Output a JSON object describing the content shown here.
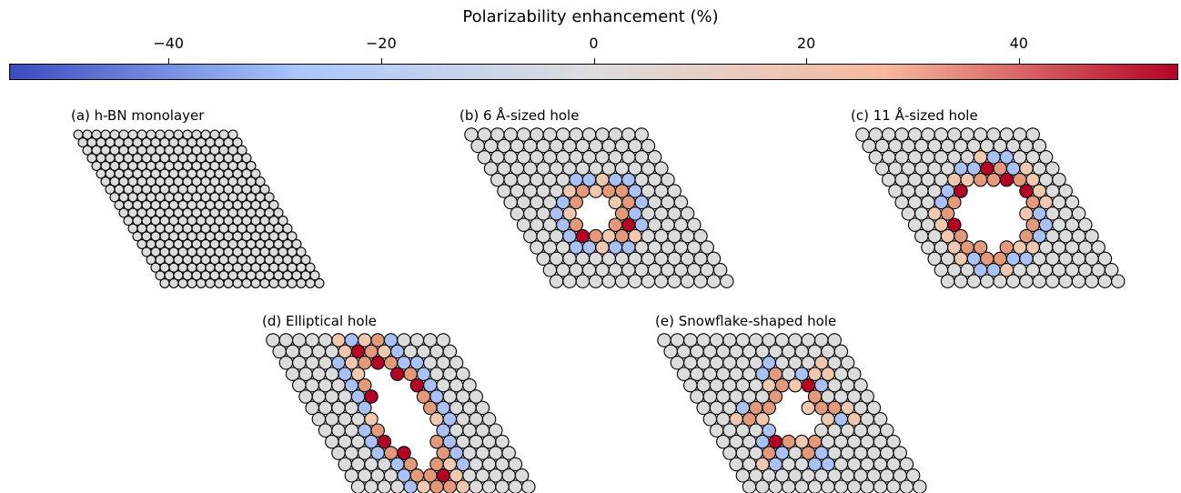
{
  "colorbar": {
    "title": "Polarizability enhancement (%)",
    "ticks": [
      "−40",
      "−20",
      "0",
      "20",
      "40"
    ],
    "tick_values": [
      -40,
      -20,
      0,
      20,
      40
    ],
    "range": [
      -55,
      55
    ],
    "colors": [
      "#3b4cc0",
      "#aac7fd",
      "#dddddd",
      "#f7b89c",
      "#b40426"
    ]
  },
  "panels": [
    {
      "id": "a",
      "label": "(a) h-BN monolayer",
      "hole": "none"
    },
    {
      "id": "b",
      "label": "(b) 6 Å-sized hole",
      "hole": "circle-small"
    },
    {
      "id": "c",
      "label": "(c) 11 Å-sized hole",
      "hole": "circle-large"
    },
    {
      "id": "d",
      "label": "(d) Elliptical hole",
      "hole": "ellipse"
    },
    {
      "id": "e",
      "label": "(e) Snowflake-shaped hole",
      "hole": "snowflake"
    }
  ],
  "atom_colors": {
    "neutral": "#dcdcdc",
    "edge_positive": "#e39a7a",
    "edge_strong": "#b40426",
    "ring_negative": "#aac1f5",
    "edge_light": "#f0c8b0"
  }
}
